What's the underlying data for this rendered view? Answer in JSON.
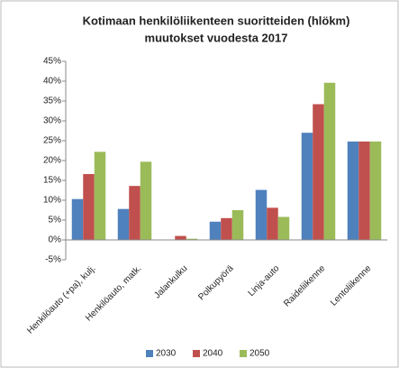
{
  "chart_data": {
    "type": "bar",
    "title": [
      "Kotimaan henkilöliikenteen suoritteiden (hlökm)",
      "muutokset vuodesta 2017"
    ],
    "categories": [
      "Henkilöauto (+pa), kulj.",
      "Henkilöauto, matk.",
      "Jalankulku",
      "Polkupyörä",
      "Linja-auto",
      "Raideliikenne",
      "Lentoliikenne"
    ],
    "series": [
      {
        "name": "2030",
        "color": "#4f81bd",
        "values": [
          10.3,
          7.8,
          0,
          4.6,
          12.6,
          27,
          24.8
        ]
      },
      {
        "name": "2040",
        "color": "#c0504d",
        "values": [
          16.6,
          13.6,
          1.0,
          5.5,
          8.1,
          34.2,
          24.8
        ]
      },
      {
        "name": "2050",
        "color": "#9bbb59",
        "values": [
          22.2,
          19.7,
          0.3,
          7.5,
          5.8,
          39.6,
          24.8
        ]
      }
    ],
    "ylim": [
      -5,
      45
    ],
    "yticks": [
      {
        "value": -5,
        "label": "-5%"
      },
      {
        "value": 0,
        "label": "0%"
      },
      {
        "value": 5,
        "label": "5%"
      },
      {
        "value": 10,
        "label": "10%"
      },
      {
        "value": 15,
        "label": "15%"
      },
      {
        "value": 20,
        "label": "20%"
      },
      {
        "value": 25,
        "label": "25%"
      },
      {
        "value": 30,
        "label": "30%"
      },
      {
        "value": 35,
        "label": "35%"
      },
      {
        "value": 40,
        "label": "40%"
      },
      {
        "value": 45,
        "label": "45%"
      }
    ],
    "grid": false,
    "legend": "bottom"
  }
}
